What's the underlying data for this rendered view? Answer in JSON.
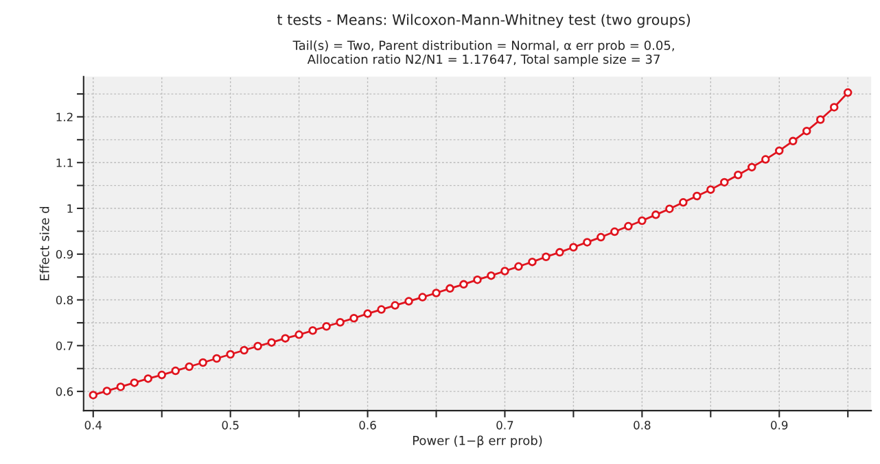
{
  "chart_data": {
    "type": "line",
    "title": "t tests - Means: Wilcoxon-Mann-Whitney test (two groups)",
    "subtitle": "Tail(s) = Two, Parent distribution = Normal, α err prob = 0.05,\nAllocation ratio N2/N1 = 1.17647, Total sample size = 37",
    "xlabel": "Power (1−β err prob)",
    "ylabel": "Effect size d",
    "x": [
      0.4,
      0.41,
      0.42,
      0.43,
      0.44,
      0.45,
      0.46,
      0.47,
      0.48,
      0.49,
      0.5,
      0.51,
      0.52,
      0.53,
      0.54,
      0.55,
      0.56,
      0.57,
      0.58,
      0.59,
      0.6,
      0.61,
      0.62,
      0.63,
      0.64,
      0.65,
      0.66,
      0.67,
      0.68,
      0.69,
      0.7,
      0.71,
      0.72,
      0.73,
      0.74,
      0.75,
      0.76,
      0.77,
      0.78,
      0.79,
      0.8,
      0.81,
      0.82,
      0.83,
      0.84,
      0.85,
      0.86,
      0.87,
      0.88,
      0.89,
      0.9,
      0.91,
      0.92,
      0.93,
      0.94,
      0.95
    ],
    "series": [
      {
        "color": "#e0141e",
        "values": [
          0.592,
          0.601,
          0.61,
          0.619,
          0.628,
          0.636,
          0.645,
          0.654,
          0.663,
          0.672,
          0.681,
          0.69,
          0.699,
          0.707,
          0.716,
          0.724,
          0.733,
          0.742,
          0.751,
          0.76,
          0.77,
          0.779,
          0.788,
          0.797,
          0.806,
          0.815,
          0.825,
          0.834,
          0.844,
          0.853,
          0.863,
          0.873,
          0.883,
          0.894,
          0.904,
          0.915,
          0.926,
          0.937,
          0.949,
          0.961,
          0.973,
          0.986,
          0.999,
          1.013,
          1.027,
          1.041,
          1.057,
          1.073,
          1.09,
          1.107,
          1.126,
          1.147,
          1.169,
          1.194,
          1.221,
          1.253
        ]
      }
    ],
    "xlim": [
      0.393,
      0.967
    ],
    "ylim": [
      0.558,
      1.288
    ],
    "xticks": [
      0.4,
      {
        "value": 0.45,
        "label": null
      },
      0.5,
      {
        "value": 0.55,
        "label": null
      },
      0.6,
      {
        "value": 0.65,
        "label": null
      },
      0.7,
      {
        "value": 0.75,
        "label": null
      },
      0.8,
      {
        "value": 0.85,
        "label": null
      },
      0.9,
      {
        "value": 0.95,
        "label": null
      }
    ],
    "yticks": [
      0.6,
      {
        "value": 0.65,
        "label": null
      },
      0.7,
      {
        "value": 0.75,
        "label": null
      },
      0.8,
      {
        "value": 0.85,
        "label": null
      },
      0.9,
      {
        "value": 0.95,
        "label": null
      },
      {
        "value": 1,
        "label": "1"
      },
      {
        "value": 1.05,
        "label": null
      },
      1.1,
      {
        "value": 1.15,
        "label": null
      },
      1.2,
      {
        "value": 1.25,
        "label": null
      }
    ],
    "grid": true,
    "marker": "circle",
    "line_style": "solid",
    "legend": false
  }
}
